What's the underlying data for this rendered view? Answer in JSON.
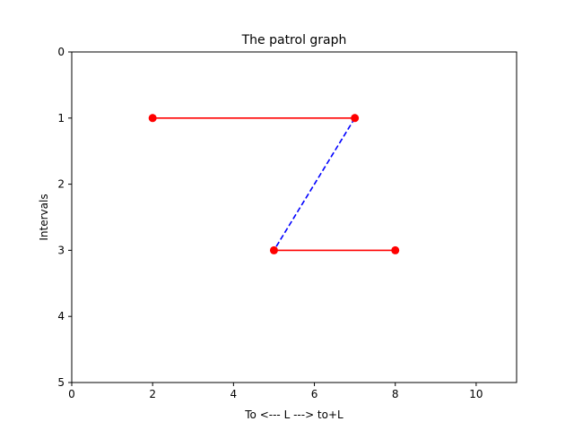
{
  "chart_data": {
    "type": "line",
    "title": "The patrol graph",
    "xlabel": "To <--- L ---> to+L",
    "ylabel": "Intervals",
    "xlim": [
      0,
      11
    ],
    "ylim": [
      0,
      5
    ],
    "y_inverted": true,
    "grid": false,
    "x_ticks": [
      0,
      2,
      4,
      6,
      8,
      10
    ],
    "y_ticks": [
      0,
      1,
      2,
      3,
      4,
      5
    ],
    "colors": {
      "solid": "#ff0000",
      "dashed": "#0000ff",
      "marker": "#ff0000"
    },
    "segments": [
      {
        "style": "solid",
        "color": "#ff0000",
        "points": [
          [
            2,
            1
          ],
          [
            7,
            1
          ]
        ],
        "markers": true
      },
      {
        "style": "dashed",
        "color": "#0000ff",
        "points": [
          [
            7,
            1
          ],
          [
            5,
            3
          ]
        ],
        "markers": false
      },
      {
        "style": "solid",
        "color": "#ff0000",
        "points": [
          [
            5,
            3
          ],
          [
            8,
            3
          ]
        ],
        "markers": true
      }
    ]
  }
}
